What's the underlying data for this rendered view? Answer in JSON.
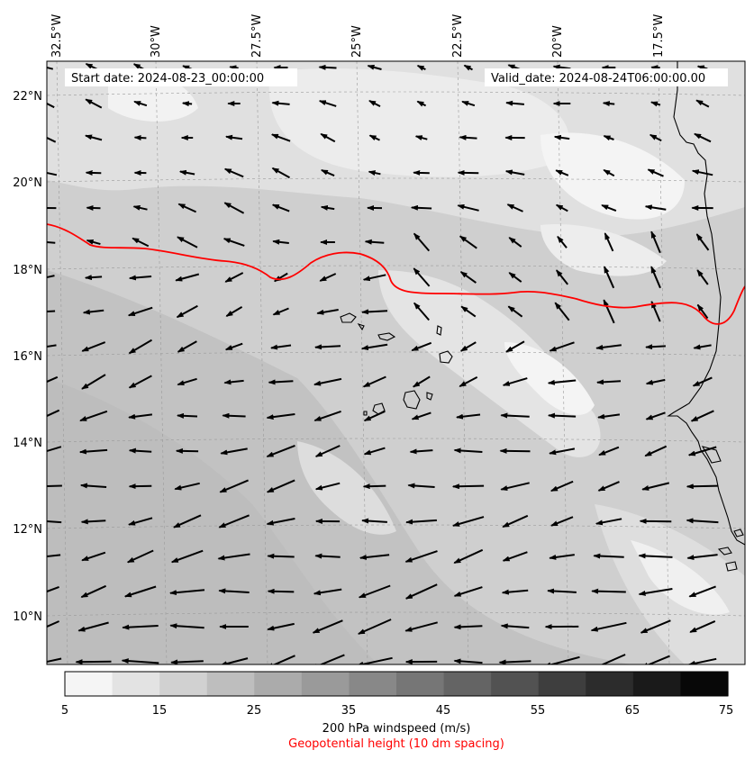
{
  "map": {
    "start_label": "Start date: 2024-08-23_00:00:00",
    "valid_label": "Valid_date: 2024-08-24T06:00:00.00",
    "lon_labels": [
      "32.5°W",
      "30°W",
      "27.5°W",
      "25°W",
      "22.5°W",
      "20°W",
      "17.5°W"
    ],
    "lat_labels": [
      "22°N",
      "20°N",
      "18°N",
      "16°N",
      "14°N",
      "12°N",
      "10°N"
    ],
    "contour_color": "#ff0000",
    "coast_color": "#000000"
  },
  "colorbar": {
    "ticks": [
      "5",
      "15",
      "25",
      "35",
      "45",
      "55",
      "65",
      "75"
    ],
    "colors": [
      "#f5f5f5",
      "#e3e3e3",
      "#d1d1d1",
      "#bebebe",
      "#ababab",
      "#9a9a9a",
      "#888888",
      "#767676",
      "#646464",
      "#525252",
      "#3e3e3e",
      "#2c2c2c",
      "#1a1a1a",
      "#080808"
    ],
    "title": "200 hPa windspeed (m/s)",
    "subtitle": "Geopotential height (10 dm spacing)"
  }
}
